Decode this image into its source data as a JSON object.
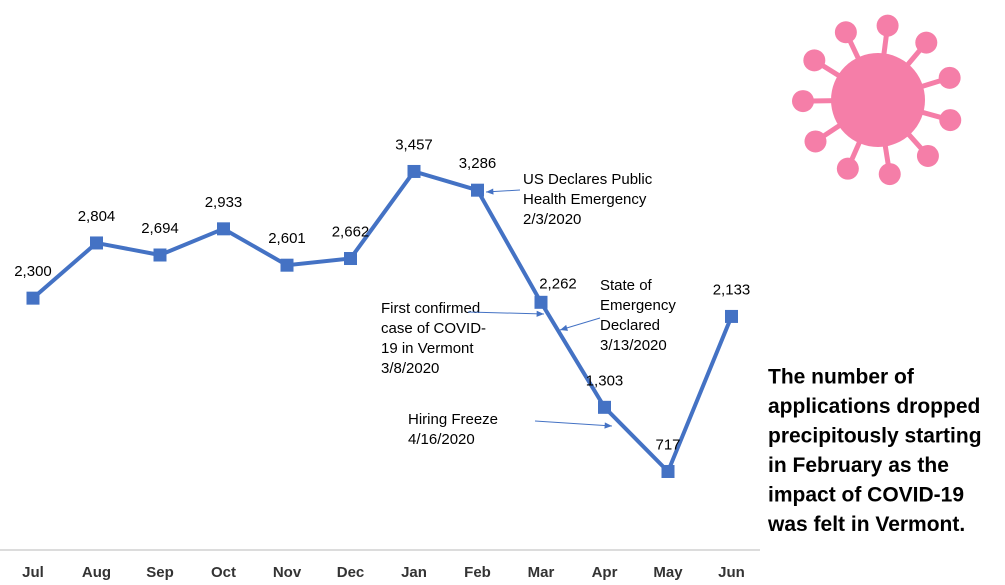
{
  "chart_data": {
    "type": "line",
    "categories": [
      "Jul",
      "Aug",
      "Sep",
      "Oct",
      "Nov",
      "Dec",
      "Jan",
      "Feb",
      "Mar",
      "Apr",
      "May",
      "Jun"
    ],
    "series": [
      {
        "color": "#4472c4",
        "values": [
          2300,
          2804,
          2694,
          2933,
          2601,
          2662,
          3457,
          3286,
          2262,
          1303,
          717,
          2133
        ],
        "value_labels": [
          "2,300",
          "2,804",
          "2,694",
          "2,933",
          "2,601",
          "2,662",
          "3,457",
          "3,286",
          "2,262",
          "1,303",
          "717",
          "2,133"
        ]
      }
    ],
    "ylim": [
      0,
      4000
    ],
    "annotations": [
      {
        "lines": [
          "US Declares Public",
          "Health Emergency",
          "2/3/2020"
        ]
      },
      {
        "lines": [
          "First confirmed",
          "case of COVID-",
          "19 in Vermont",
          "3/8/2020"
        ]
      },
      {
        "lines": [
          "State of",
          "Emergency",
          "Declared",
          "3/13/2020"
        ]
      },
      {
        "lines": [
          "Hiring Freeze",
          "4/16/2020"
        ]
      }
    ],
    "side_note": {
      "lines": [
        "The number of",
        "applications dropped",
        "precipitously starting",
        "in February as the",
        "impact of COVID-19",
        "was felt in Vermont."
      ],
      "color": "#ed7d31"
    }
  }
}
